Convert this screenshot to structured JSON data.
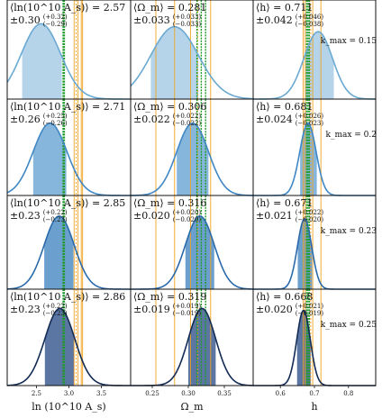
{
  "chart_data": {
    "type": "area",
    "title": "",
    "grid": false,
    "columns": [
      {
        "param": "ln10As",
        "xlabel": "ln (10^10 A_s)",
        "xlim": [
          2.05,
          3.95
        ],
        "xticks": [
          2.5,
          3.0,
          3.5
        ],
        "xtick_labels": [
          "2.5",
          "3.0",
          "3.5"
        ],
        "green_lines": [
          2.91,
          2.92,
          2.93
        ],
        "orange_lines": [
          3.08,
          3.14,
          3.19,
          3.21
        ],
        "orange_dotted_lines": [
          3.11
        ]
      },
      {
        "param": "Omega_m",
        "xlabel": "Ω_m",
        "xlim": [
          0.22,
          0.39
        ],
        "xticks": [
          0.25,
          0.3,
          0.35
        ],
        "xtick_labels": [
          "0.25",
          "0.30",
          "0.35"
        ],
        "green_lines": [
          0.312,
          0.318,
          0.324
        ],
        "orange_lines": [
          0.255,
          0.281,
          0.303,
          0.331
        ],
        "orange_dotted_lines": [
          0.313
        ]
      },
      {
        "param": "h",
        "xlabel": "h",
        "xlim": [
          0.52,
          0.88
        ],
        "xticks": [
          0.6,
          0.7,
          0.8
        ],
        "xtick_labels": [
          "0.6",
          "0.7",
          "0.8"
        ],
        "green_lines": [
          0.677,
          0.681,
          0.685
        ],
        "orange_lines": [
          0.667,
          0.673,
          0.695,
          0.719
        ],
        "orange_dotted_lines": [
          0.689
        ]
      }
    ],
    "rows": [
      {
        "kmax_label": "k_max = 0.15",
        "fill": "#b5d4ea",
        "line": "#6aa9d2",
        "panels": [
          {
            "label_top": "⟨ln(10^10 A_s)⟩ = 2.57",
            "label_bot": "±0.30",
            "sup": "(+0.32)",
            "sub": "(−0.29)",
            "mean": 2.57,
            "sigma": 0.3,
            "lo": 2.28,
            "hi": 2.89,
            "amp": 0.76
          },
          {
            "label_top": "⟨Ω_m⟩ = 0.281",
            "label_bot": "±0.033",
            "sup": "(+0.033)",
            "sub": "(−0.033)",
            "mean": 0.281,
            "sigma": 0.033,
            "lo": 0.248,
            "hi": 0.314,
            "amp": 0.73
          },
          {
            "label_top": "⟨h⟩ = 0.711",
            "label_bot": "±0.042",
            "sup": "(+0.046)",
            "sub": "(−0.038)",
            "mean": 0.711,
            "sigma": 0.042,
            "lo": 0.673,
            "hi": 0.757,
            "amp": 0.68
          }
        ]
      },
      {
        "kmax_label": "k_max = 0.2",
        "fill": "#87b6dc",
        "line": "#3f87c4",
        "panels": [
          {
            "label_top": "⟨ln(10^10 A_s)⟩ = 2.71",
            "label_bot": "±0.26",
            "sup": "(+0.25)",
            "sub": "(−0.26)",
            "mean": 2.71,
            "sigma": 0.26,
            "lo": 2.45,
            "hi": 2.96,
            "amp": 0.75
          },
          {
            "label_top": "⟨Ω_m⟩ = 0.306",
            "label_bot": "±0.022",
            "sup": "(+0.022)",
            "sub": "(−0.022)",
            "mean": 0.306,
            "sigma": 0.022,
            "lo": 0.284,
            "hi": 0.328,
            "amp": 0.75
          },
          {
            "label_top": "⟨h⟩ = 0.681",
            "label_bot": "±0.024",
            "sup": "(+0.026)",
            "sub": "(−0.023)",
            "mean": 0.681,
            "sigma": 0.024,
            "lo": 0.658,
            "hi": 0.707,
            "amp": 0.75
          }
        ]
      },
      {
        "kmax_label": "k_max = 0.23",
        "fill": "#6b9fcd",
        "line": "#2a6aab",
        "panels": [
          {
            "label_top": "⟨ln(10^10 A_s)⟩ = 2.85",
            "label_bot": "±0.23",
            "sup": "(+0.22)",
            "sub": "(−0.23)",
            "mean": 2.85,
            "sigma": 0.23,
            "lo": 2.62,
            "hi": 3.07,
            "amp": 0.78
          },
          {
            "label_top": "⟨Ω_m⟩ = 0.316",
            "label_bot": "±0.020",
            "sup": "(+0.020)",
            "sub": "(−0.020)",
            "mean": 0.316,
            "sigma": 0.02,
            "lo": 0.296,
            "hi": 0.336,
            "amp": 0.78
          },
          {
            "label_top": "⟨h⟩ = 0.671",
            "label_bot": "±0.021",
            "sup": "(+0.022)",
            "sub": "(−0.020)",
            "mean": 0.671,
            "sigma": 0.021,
            "lo": 0.651,
            "hi": 0.693,
            "amp": 0.75
          }
        ]
      },
      {
        "kmax_label": "k_max = 0.25",
        "fill": "#5c76a3",
        "line": "#122b55",
        "panels": [
          {
            "label_top": "⟨ln(10^10 A_s)⟩ = 2.86",
            "label_bot": "±0.23",
            "sup": "(+0.22)",
            "sub": "(−0.23)",
            "mean": 2.86,
            "sigma": 0.23,
            "lo": 2.63,
            "hi": 3.08,
            "amp": 0.8
          },
          {
            "label_top": "⟨Ω_m⟩ = 0.319",
            "label_bot": "±0.019",
            "sup": "(+0.019)",
            "sub": "(−0.019)",
            "mean": 0.319,
            "sigma": 0.019,
            "lo": 0.3,
            "hi": 0.338,
            "amp": 0.8
          },
          {
            "label_top": "⟨h⟩ = 0.668",
            "label_bot": "±0.020",
            "sup": "(+0.021)",
            "sub": "(−0.019)",
            "mean": 0.668,
            "sigma": 0.02,
            "lo": 0.649,
            "hi": 0.689,
            "amp": 0.78
          }
        ]
      }
    ],
    "colors": {
      "green": "#1f9b2a",
      "orange": "#f0a21f",
      "frame": "#111111"
    }
  }
}
